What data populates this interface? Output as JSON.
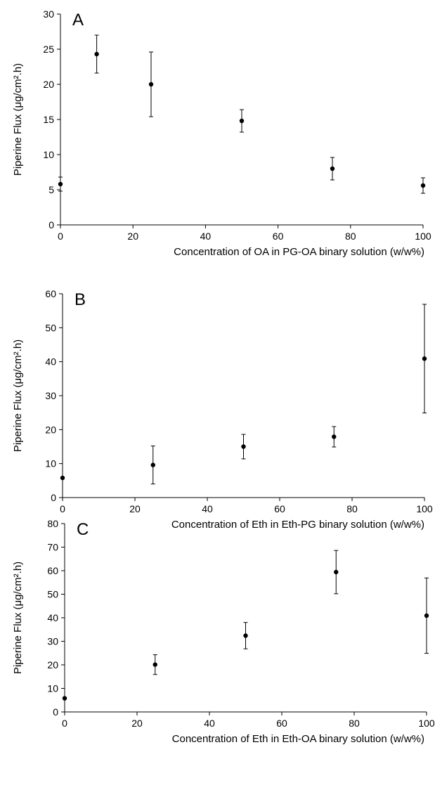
{
  "chart_data": [
    {
      "type": "scatter",
      "panel_label": "A",
      "xlabel": "Concentration of OA in PG-OA binary solution (w/w%)",
      "ylabel": "Piperine Flux (μg/cm².h)",
      "xlim": [
        0,
        100
      ],
      "ylim": [
        0,
        30
      ],
      "xticks": [
        0,
        20,
        40,
        60,
        80,
        100
      ],
      "yticks": [
        0,
        5,
        10,
        15,
        20,
        25,
        30
      ],
      "grid": false,
      "marker_color": "#000000",
      "points": [
        {
          "x": 0,
          "y": 5.8,
          "err": 1.0
        },
        {
          "x": 10,
          "y": 24.3,
          "err": 2.7
        },
        {
          "x": 25,
          "y": 20.0,
          "err": 4.6
        },
        {
          "x": 50,
          "y": 14.8,
          "err": 1.6
        },
        {
          "x": 75,
          "y": 8.0,
          "err": 1.6
        },
        {
          "x": 100,
          "y": 5.6,
          "err": 1.1
        }
      ]
    },
    {
      "type": "scatter",
      "panel_label": "B",
      "xlabel": "Concentration of Eth in Eth-PG binary solution (w/w%)",
      "ylabel": "Piperine Flux (μg/cm².h)",
      "xlim": [
        0,
        100
      ],
      "ylim": [
        0,
        60
      ],
      "xticks": [
        0,
        20,
        40,
        60,
        80,
        100
      ],
      "yticks": [
        0,
        10,
        20,
        30,
        40,
        50,
        60
      ],
      "grid": false,
      "marker_color": "#000000",
      "points": [
        {
          "x": 0,
          "y": 5.8,
          "err": 0
        },
        {
          "x": 25,
          "y": 9.6,
          "err": 5.6
        },
        {
          "x": 50,
          "y": 15.0,
          "err": 3.6
        },
        {
          "x": 75,
          "y": 17.9,
          "err": 3.0
        },
        {
          "x": 100,
          "y": 40.9,
          "err": 16.0
        }
      ]
    },
    {
      "type": "scatter",
      "panel_label": "C",
      "xlabel": "Concentration of Eth in Eth-OA binary solution (w/w%)",
      "ylabel": "Piperine Flux (μg/cm².h)",
      "xlim": [
        0,
        100
      ],
      "ylim": [
        0,
        80
      ],
      "xticks": [
        0,
        20,
        40,
        60,
        80,
        100
      ],
      "yticks": [
        0,
        10,
        20,
        30,
        40,
        50,
        60,
        70,
        80
      ],
      "grid": false,
      "marker_color": "#000000",
      "points": [
        {
          "x": 0,
          "y": 5.8,
          "err": 0
        },
        {
          "x": 25,
          "y": 20.1,
          "err": 4.2
        },
        {
          "x": 50,
          "y": 32.4,
          "err": 5.6
        },
        {
          "x": 75,
          "y": 59.4,
          "err": 9.2
        },
        {
          "x": 100,
          "y": 40.9,
          "err": 16.0
        }
      ]
    }
  ]
}
